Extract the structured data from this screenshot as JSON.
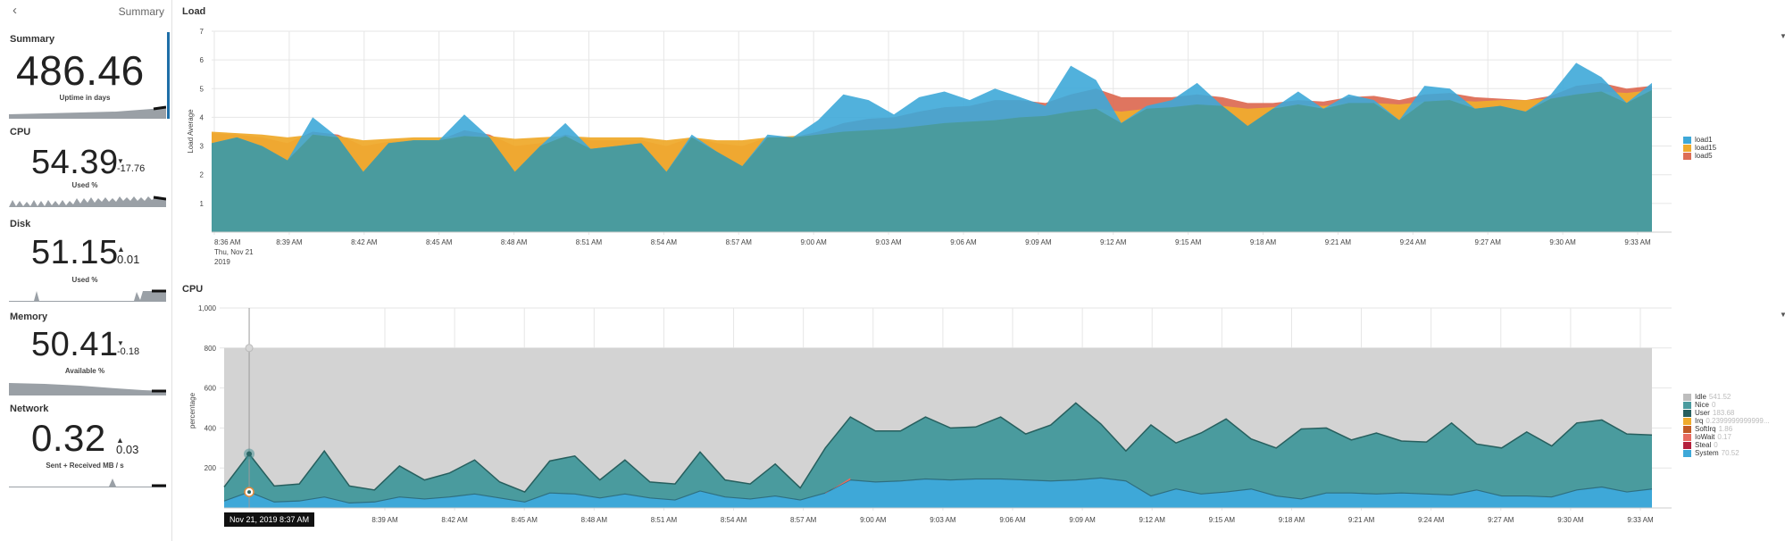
{
  "sidebar": {
    "back_icon": "chevron-left-icon",
    "title": "Summary",
    "metrics": [
      {
        "label": "Summary",
        "value": "486.46",
        "delta": "",
        "subtitle": "Uptime in days"
      },
      {
        "label": "CPU",
        "value": "54.39",
        "delta": "-17.76",
        "delta_dir": "down",
        "subtitle": "Used %"
      },
      {
        "label": "Disk",
        "value": "51.15",
        "delta": "0.01",
        "delta_dir": "up",
        "subtitle": "Used %"
      },
      {
        "label": "Memory",
        "value": "50.41",
        "delta": "-0.18",
        "delta_dir": "down",
        "subtitle": "Available %"
      },
      {
        "label": "Network",
        "value": "0.32",
        "delta": "0.03",
        "delta_dir": "up",
        "subtitle": "Sent + Received MB / s"
      }
    ]
  },
  "load_panel": {
    "title": "Load"
  },
  "cpu_panel": {
    "title": "CPU"
  },
  "tooltip": {
    "text": "Nov 21, 2019 8:37 AM"
  },
  "colors": {
    "load1": "#3ea8d8",
    "load15": "#efab2e",
    "load5": "#dd6e56",
    "teal": "#4a9b9e",
    "idle": "#bdbdbd",
    "nice": "#4a9b9e",
    "user": "#275f5e",
    "irq": "#efab2e",
    "softirq": "#c15a27",
    "iowait": "#e76b60",
    "steal": "#b4203c",
    "system": "#3ea8d8",
    "accent": "#1f6fa8"
  },
  "chart_data": [
    {
      "type": "area",
      "title": "Load",
      "xlabel": "",
      "ylabel": "Load Average",
      "ylim": [
        0,
        7
      ],
      "yticks": [
        "1",
        "2",
        "3",
        "4",
        "5",
        "6",
        "7"
      ],
      "xticks": [
        "8:36 AM",
        "8:39 AM",
        "8:42 AM",
        "8:45 AM",
        "8:48 AM",
        "8:51 AM",
        "8:54 AM",
        "8:57 AM",
        "9:00 AM",
        "9:03 AM",
        "9:06 AM",
        "9:09 AM",
        "9:12 AM",
        "9:15 AM",
        "9:18 AM",
        "9:21 AM",
        "9:24 AM",
        "9:27 AM",
        "9:30 AM",
        "9:33 AM"
      ],
      "xtick_sub": [
        "Thu, Nov 21",
        "2019"
      ],
      "grid": true,
      "legend_position": "right",
      "series": [
        {
          "name": "load1",
          "values": [
            3.1,
            3.3,
            3.0,
            2.5,
            4.0,
            3.3,
            2.1,
            3.1,
            3.2,
            3.2,
            4.1,
            3.3,
            2.1,
            3.0,
            3.8,
            2.9,
            3.0,
            3.1,
            2.1,
            3.4,
            2.8,
            2.3,
            3.4,
            3.3,
            3.9,
            4.8,
            4.6,
            4.1,
            4.7,
            4.9,
            4.6,
            5.0,
            4.7,
            4.4,
            5.8,
            5.3,
            3.8,
            4.4,
            4.6,
            5.2,
            4.4,
            3.7,
            4.3,
            4.9,
            4.3,
            4.8,
            4.6,
            3.9,
            5.1,
            5.0,
            4.3,
            4.4,
            4.2,
            4.8,
            5.9,
            5.4,
            4.5,
            5.2
          ]
        },
        {
          "name": "load15",
          "values": [
            3.5,
            3.45,
            3.4,
            3.3,
            3.4,
            3.35,
            3.2,
            3.25,
            3.3,
            3.3,
            3.35,
            3.35,
            3.25,
            3.3,
            3.35,
            3.3,
            3.3,
            3.3,
            3.2,
            3.3,
            3.2,
            3.2,
            3.3,
            3.35,
            3.4,
            3.5,
            3.55,
            3.6,
            3.7,
            3.8,
            3.85,
            3.9,
            4.0,
            4.05,
            4.2,
            4.3,
            4.2,
            4.3,
            4.35,
            4.45,
            4.4,
            4.3,
            4.35,
            4.45,
            4.4,
            4.5,
            4.5,
            4.45,
            4.55,
            4.6,
            4.55,
            4.6,
            4.6,
            4.65,
            4.8,
            4.9,
            4.85,
            4.95
          ]
        },
        {
          "name": "load5",
          "values": [
            3.45,
            3.4,
            3.3,
            3.1,
            3.5,
            3.4,
            3.0,
            3.15,
            3.2,
            3.2,
            3.55,
            3.4,
            3.0,
            3.1,
            3.4,
            3.2,
            3.2,
            3.2,
            3.0,
            3.3,
            3.1,
            3.0,
            3.3,
            3.3,
            3.5,
            3.8,
            3.95,
            4.0,
            4.2,
            4.35,
            4.4,
            4.6,
            4.6,
            4.5,
            4.8,
            5.0,
            4.7,
            4.7,
            4.7,
            4.8,
            4.7,
            4.5,
            4.5,
            4.6,
            4.55,
            4.7,
            4.75,
            4.6,
            4.8,
            4.85,
            4.7,
            4.65,
            4.6,
            4.75,
            5.1,
            5.2,
            5.0,
            5.1
          ]
        }
      ]
    },
    {
      "type": "area",
      "title": "CPU",
      "xlabel": "",
      "ylabel": "percentage",
      "ylim": [
        0,
        1000
      ],
      "yticks": [
        "200",
        "400",
        "600",
        "800",
        "1,000"
      ],
      "xticks": [
        "8:39 AM",
        "8:42 AM",
        "8:45 AM",
        "8:48 AM",
        "8:51 AM",
        "8:54 AM",
        "8:57 AM",
        "9:00 AM",
        "9:03 AM",
        "9:06 AM",
        "9:09 AM",
        "9:12 AM",
        "9:15 AM",
        "9:18 AM",
        "9:21 AM",
        "9:24 AM",
        "9:27 AM",
        "9:30 AM",
        "9:33 AM"
      ],
      "grid": true,
      "legend_position": "right",
      "legend": [
        {
          "name": "Idle",
          "value": "541.52"
        },
        {
          "name": "Nice",
          "value": "0"
        },
        {
          "name": "User",
          "value": "183.68"
        },
        {
          "name": "Irq",
          "value": "0.2399999999999..."
        },
        {
          "name": "SoftIrq",
          "value": "1.86"
        },
        {
          "name": "IoWait",
          "value": "0.17"
        },
        {
          "name": "Steal",
          "value": "0"
        },
        {
          "name": "System",
          "value": "70.52"
        }
      ],
      "series": [
        {
          "name": "System",
          "values": [
            35,
            80,
            30,
            35,
            55,
            25,
            30,
            55,
            45,
            55,
            70,
            50,
            30,
            75,
            70,
            50,
            70,
            50,
            40,
            85,
            55,
            45,
            60,
            40,
            75,
            140,
            130,
            135,
            145,
            140,
            145,
            145,
            140,
            135,
            140,
            150,
            135,
            60,
            95,
            70,
            80,
            95,
            60,
            45,
            75,
            75,
            70,
            75,
            70,
            65,
            90,
            60,
            60,
            55,
            90,
            105,
            80,
            95
          ]
        },
        {
          "name": "User",
          "values": [
            105,
            270,
            110,
            120,
            285,
            110,
            90,
            210,
            140,
            175,
            240,
            130,
            80,
            235,
            260,
            140,
            240,
            130,
            120,
            280,
            140,
            120,
            220,
            100,
            300,
            455,
            385,
            385,
            455,
            400,
            405,
            455,
            370,
            415,
            525,
            420,
            285,
            415,
            325,
            375,
            445,
            345,
            300,
            395,
            400,
            340,
            375,
            335,
            330,
            425,
            320,
            300,
            380,
            310,
            425,
            440,
            370,
            365
          ]
        },
        {
          "name": "Idle",
          "values": [
            800,
            800,
            800,
            800,
            800,
            800,
            800,
            800,
            800,
            800,
            800,
            800,
            800,
            800,
            800,
            800,
            800,
            800,
            800,
            800,
            800,
            800,
            800,
            800,
            800,
            800,
            800,
            800,
            800,
            800,
            800,
            800,
            800,
            800,
            800,
            800,
            800,
            800,
            800,
            800,
            800,
            800,
            800,
            800,
            800,
            800,
            800,
            800,
            800,
            800,
            800,
            800,
            800,
            800,
            800,
            800,
            800,
            800
          ]
        }
      ]
    }
  ]
}
